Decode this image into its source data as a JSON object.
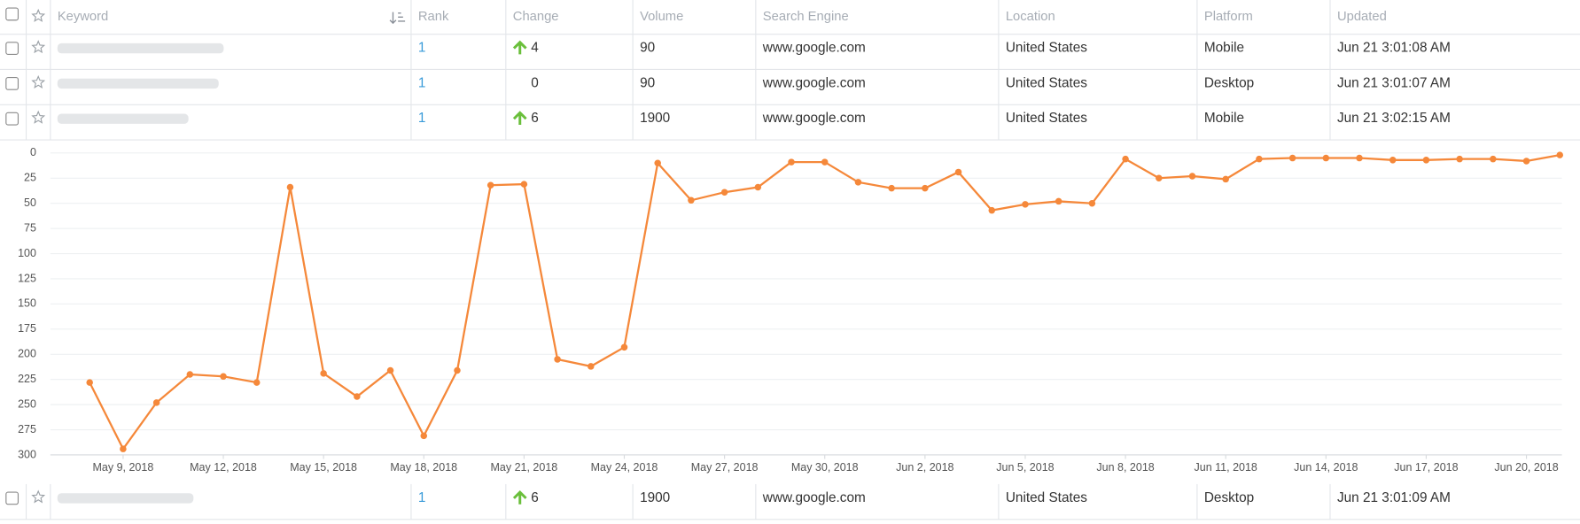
{
  "table": {
    "columns": [
      "Keyword",
      "Rank",
      "Change",
      "Volume",
      "Search Engine",
      "Location",
      "Platform",
      "Updated"
    ],
    "rows": [
      {
        "rank": "1",
        "change": "4",
        "trend": "up",
        "volume": "90",
        "search_engine": "www.google.com",
        "location": "United States",
        "platform": "Mobile",
        "updated": "Jun 21 3:01:08 AM"
      },
      {
        "rank": "1",
        "change": "0",
        "volume": "90",
        "search_engine": "www.google.com",
        "location": "United States",
        "platform": "Desktop",
        "updated": "Jun 21 3:01:07 AM"
      },
      {
        "rank": "1",
        "change": "6",
        "trend": "up",
        "volume": "1900",
        "search_engine": "www.google.com",
        "location": "United States",
        "platform": "Mobile",
        "updated": "Jun 21 3:02:15 AM"
      },
      {
        "rank": "1",
        "change": "6",
        "trend": "up",
        "volume": "1900",
        "search_engine": "www.google.com",
        "location": "United States",
        "platform": "Desktop",
        "updated": "Jun 21 3:01:09 AM"
      }
    ]
  },
  "chart_data": {
    "type": "line",
    "color": "#f5883a",
    "x": [
      "2018-05-08",
      "2018-05-09",
      "2018-05-10",
      "2018-05-11",
      "2018-05-12",
      "2018-05-13",
      "2018-05-14",
      "2018-05-15",
      "2018-05-16",
      "2018-05-17",
      "2018-05-18",
      "2018-05-19",
      "2018-05-20",
      "2018-05-21",
      "2018-05-22",
      "2018-05-23",
      "2018-05-24",
      "2018-05-25",
      "2018-05-26",
      "2018-05-27",
      "2018-05-28",
      "2018-05-29",
      "2018-05-30",
      "2018-05-31",
      "2018-06-01",
      "2018-06-02",
      "2018-06-03",
      "2018-06-04",
      "2018-06-05",
      "2018-06-06",
      "2018-06-07",
      "2018-06-08",
      "2018-06-09",
      "2018-06-10",
      "2018-06-11",
      "2018-06-12",
      "2018-06-13",
      "2018-06-14",
      "2018-06-15",
      "2018-06-16",
      "2018-06-17",
      "2018-06-18",
      "2018-06-19",
      "2018-06-20",
      "2018-06-21"
    ],
    "values": [
      228,
      294,
      248,
      220,
      222,
      228,
      34,
      219,
      242,
      216,
      281,
      216,
      32,
      31,
      205,
      212,
      193,
      10,
      47,
      39,
      34,
      9,
      9,
      29,
      35,
      35,
      19,
      57,
      51,
      48,
      50,
      6,
      25,
      23,
      26,
      6,
      5,
      5,
      5,
      7,
      7,
      6,
      6,
      8,
      2
    ],
    "xlim": [
      "2018-05-08",
      "2018-06-21"
    ],
    "xticks": [
      {
        "value": "2018-05-09",
        "label": "May 9, 2018"
      },
      {
        "value": "2018-05-12",
        "label": "May 12, 2018"
      },
      {
        "value": "2018-05-15",
        "label": "May 15, 2018"
      },
      {
        "value": "2018-05-18",
        "label": "May 18, 2018"
      },
      {
        "value": "2018-05-21",
        "label": "May 21, 2018"
      },
      {
        "value": "2018-05-24",
        "label": "May 24, 2018"
      },
      {
        "value": "2018-05-27",
        "label": "May 27, 2018"
      },
      {
        "value": "2018-05-30",
        "label": "May 30, 2018"
      },
      {
        "value": "2018-06-02",
        "label": "Jun 2, 2018"
      },
      {
        "value": "2018-06-05",
        "label": "Jun 5, 2018"
      },
      {
        "value": "2018-06-08",
        "label": "Jun 8, 2018"
      },
      {
        "value": "2018-06-11",
        "label": "Jun 11, 2018"
      },
      {
        "value": "2018-06-14",
        "label": "Jun 14, 2018"
      },
      {
        "value": "2018-06-17",
        "label": "Jun 17, 2018"
      },
      {
        "value": "2018-06-20",
        "label": "Jun 20, 2018"
      }
    ],
    "ylim": [
      0,
      300
    ],
    "yticks": [
      0,
      25,
      50,
      75,
      100,
      125,
      150,
      175,
      200,
      225,
      250,
      275,
      300
    ],
    "y_inverted": true,
    "grid": true
  }
}
